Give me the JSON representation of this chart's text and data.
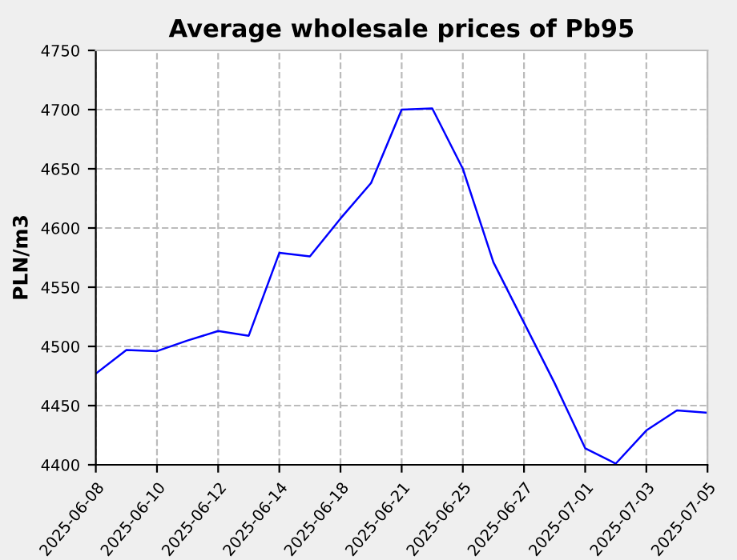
{
  "chart_data": {
    "type": "line",
    "title": "Average wholesale prices of Pb95",
    "ylabel": "PLN/m3",
    "categories": [
      "2025-06-08",
      null,
      "2025-06-10",
      null,
      "2025-06-12",
      null,
      "2025-06-14",
      null,
      "2025-06-18",
      null,
      "2025-06-21",
      null,
      "2025-06-25",
      null,
      "2025-06-27",
      null,
      "2025-07-01",
      null,
      "2025-07-03",
      null,
      "2025-07-05"
    ],
    "series": [
      {
        "color": "#0000ff",
        "values": [
          4477,
          4497,
          4496,
          4505,
          4513,
          4509,
          4579,
          4576,
          4608,
          4638,
          4700,
          4701,
          4650,
          4571,
          4520,
          4469,
          4414,
          4401,
          4429,
          4446,
          4444
        ]
      }
    ],
    "ylim": [
      4400,
      4750
    ],
    "yticks": [
      4400,
      4450,
      4500,
      4550,
      4600,
      4650,
      4700,
      4750
    ],
    "grid": true,
    "line_style": "solid",
    "marker": "none"
  }
}
